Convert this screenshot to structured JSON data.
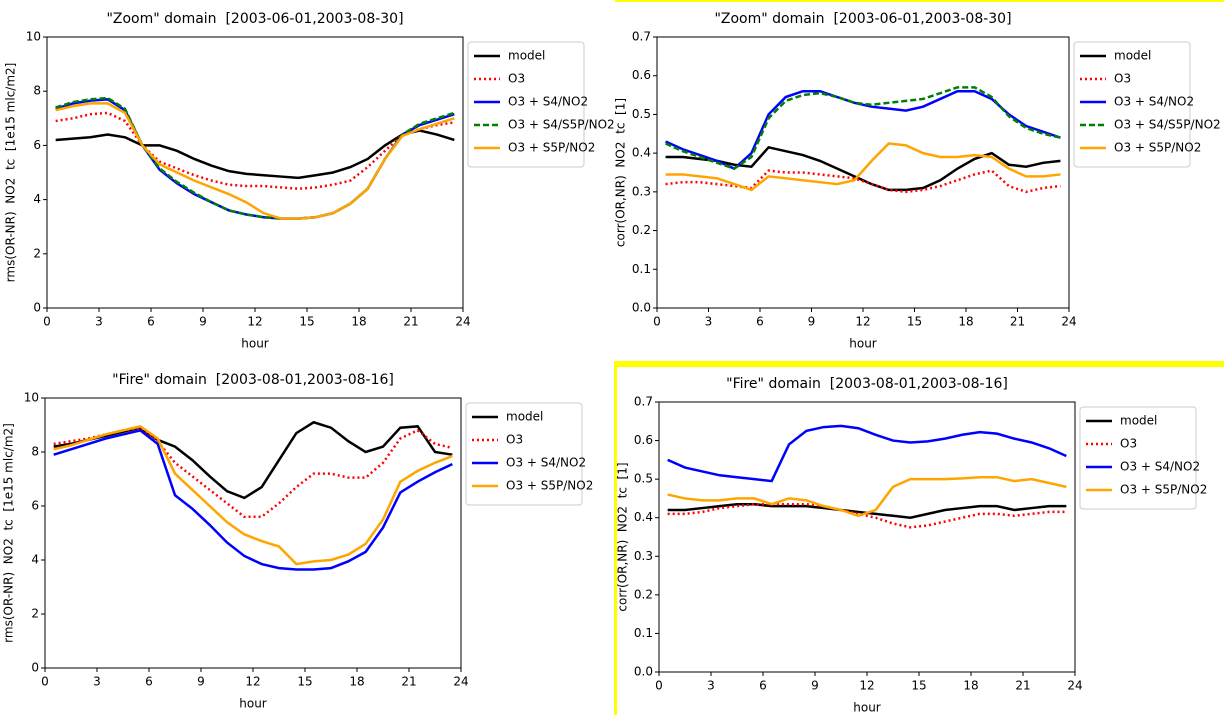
{
  "chart_data": [
    {
      "type": "line",
      "title": "\"Zoom\" domain  [2003-06-01,2003-08-30]",
      "xlabel": "hour",
      "ylabel": "rms(OR-NR)  NO2  tc  [1e15 mlc/m2]",
      "x": [
        0.5,
        1.5,
        2.5,
        3.5,
        4.5,
        5.5,
        6.5,
        7.5,
        8.5,
        9.5,
        10.5,
        11.5,
        12.5,
        13.5,
        14.5,
        15.5,
        16.5,
        17.5,
        18.5,
        19.5,
        20.5,
        21.5,
        22.5,
        23.5
      ],
      "xlim": [
        0,
        24
      ],
      "xticks": [
        0,
        3,
        6,
        9,
        12,
        15,
        18,
        21,
        24
      ],
      "ylim": [
        0,
        10
      ],
      "yticks": [
        0,
        2,
        4,
        6,
        8,
        10
      ],
      "legend": "outside right",
      "series": [
        {
          "name": "model",
          "color": "#000000",
          "style": "solid",
          "values": [
            6.2,
            6.25,
            6.3,
            6.4,
            6.3,
            6.0,
            6.0,
            5.8,
            5.5,
            5.25,
            5.05,
            4.95,
            4.9,
            4.85,
            4.8,
            4.9,
            5.0,
            5.2,
            5.5,
            6.0,
            6.4,
            6.55,
            6.4,
            6.2
          ]
        },
        {
          "name": "O3",
          "color": "#ff0000",
          "style": "dotted",
          "values": [
            6.9,
            7.0,
            7.15,
            7.2,
            6.9,
            6.0,
            5.4,
            5.15,
            4.9,
            4.7,
            4.55,
            4.5,
            4.5,
            4.45,
            4.4,
            4.45,
            4.55,
            4.7,
            5.2,
            5.8,
            6.4,
            6.6,
            6.75,
            6.85
          ]
        },
        {
          "name": "O3 + S4/NO2",
          "color": "#0000ff",
          "style": "solid",
          "values": [
            7.35,
            7.55,
            7.65,
            7.7,
            7.3,
            6.0,
            5.1,
            4.6,
            4.2,
            3.9,
            3.6,
            3.45,
            3.35,
            3.3,
            3.3,
            3.35,
            3.5,
            3.85,
            4.4,
            5.5,
            6.4,
            6.75,
            6.95,
            7.15
          ]
        },
        {
          "name": "O3 + S4/S5P/NO2",
          "color": "#008000",
          "style": "dashed",
          "values": [
            7.4,
            7.6,
            7.7,
            7.75,
            7.35,
            6.0,
            5.15,
            4.65,
            4.25,
            3.9,
            3.6,
            3.45,
            3.35,
            3.3,
            3.3,
            3.35,
            3.5,
            3.85,
            4.4,
            5.5,
            6.4,
            6.8,
            7.0,
            7.2
          ]
        },
        {
          "name": "O3 + S5P/NO2",
          "color": "#ffa500",
          "style": "solid",
          "values": [
            7.3,
            7.45,
            7.55,
            7.55,
            7.2,
            6.0,
            5.3,
            5.0,
            4.7,
            4.45,
            4.2,
            3.9,
            3.5,
            3.3,
            3.3,
            3.35,
            3.5,
            3.85,
            4.4,
            5.5,
            6.35,
            6.6,
            6.8,
            7.0
          ]
        }
      ]
    },
    {
      "type": "line",
      "title": "\"Zoom\" domain  [2003-06-01,2003-08-30]",
      "xlabel": "hour",
      "ylabel": "corr(OR,NR)  NO2  tc  [1]",
      "x": [
        0.5,
        1.5,
        2.5,
        3.5,
        4.5,
        5.5,
        6.5,
        7.5,
        8.5,
        9.5,
        10.5,
        11.5,
        12.5,
        13.5,
        14.5,
        15.5,
        16.5,
        17.5,
        18.5,
        19.5,
        20.5,
        21.5,
        22.5,
        23.5
      ],
      "xlim": [
        0,
        24
      ],
      "xticks": [
        0,
        3,
        6,
        9,
        12,
        15,
        18,
        21,
        24
      ],
      "ylim": [
        0,
        0.7
      ],
      "yticks": [
        {
          "value": 0,
          "label": "0.0"
        },
        0.1,
        0.2,
        0.3,
        0.4,
        0.5,
        0.6,
        0.7
      ],
      "legend": "outside right",
      "series": [
        {
          "name": "model",
          "color": "#000000",
          "style": "solid",
          "values": [
            0.39,
            0.39,
            0.385,
            0.38,
            0.37,
            0.365,
            0.415,
            0.405,
            0.395,
            0.38,
            0.36,
            0.34,
            0.32,
            0.305,
            0.305,
            0.31,
            0.33,
            0.36,
            0.385,
            0.4,
            0.37,
            0.365,
            0.375,
            0.38
          ]
        },
        {
          "name": "O3",
          "color": "#ff0000",
          "style": "dotted",
          "values": [
            0.32,
            0.325,
            0.325,
            0.32,
            0.315,
            0.31,
            0.355,
            0.35,
            0.35,
            0.345,
            0.34,
            0.335,
            0.32,
            0.305,
            0.3,
            0.305,
            0.315,
            0.33,
            0.345,
            0.355,
            0.315,
            0.3,
            0.31,
            0.315
          ]
        },
        {
          "name": "O3 + S4/NO2",
          "color": "#0000ff",
          "style": "solid",
          "values": [
            0.43,
            0.41,
            0.395,
            0.38,
            0.36,
            0.4,
            0.5,
            0.545,
            0.56,
            0.56,
            0.545,
            0.53,
            0.52,
            0.515,
            0.51,
            0.52,
            0.54,
            0.56,
            0.56,
            0.54,
            0.5,
            0.47,
            0.455,
            0.44
          ]
        },
        {
          "name": "O3 + S4/S5P/NO2",
          "color": "#008000",
          "style": "dashed",
          "values": [
            0.425,
            0.405,
            0.39,
            0.375,
            0.36,
            0.39,
            0.49,
            0.535,
            0.55,
            0.555,
            0.545,
            0.53,
            0.525,
            0.53,
            0.535,
            0.54,
            0.555,
            0.57,
            0.57,
            0.545,
            0.495,
            0.465,
            0.45,
            0.44
          ]
        },
        {
          "name": "O3 + S5P/NO2",
          "color": "#ffa500",
          "style": "solid",
          "values": [
            0.345,
            0.345,
            0.34,
            0.335,
            0.32,
            0.305,
            0.34,
            0.335,
            0.33,
            0.325,
            0.32,
            0.33,
            0.38,
            0.425,
            0.42,
            0.4,
            0.39,
            0.39,
            0.395,
            0.39,
            0.36,
            0.34,
            0.34,
            0.345
          ]
        }
      ]
    },
    {
      "type": "line",
      "title": "\"Fire\" domain  [2003-08-01,2003-08-16]",
      "xlabel": "hour",
      "ylabel": "rms(OR-NR)  NO2  tc  [1e15 mlc/m2]",
      "x": [
        0.5,
        1.5,
        2.5,
        3.5,
        4.5,
        5.5,
        6.5,
        7.5,
        8.5,
        9.5,
        10.5,
        11.5,
        12.5,
        13.5,
        14.5,
        15.5,
        16.5,
        17.5,
        18.5,
        19.5,
        20.5,
        21.5,
        22.5,
        23.5
      ],
      "xlim": [
        0,
        24
      ],
      "xticks": [
        0,
        3,
        6,
        9,
        12,
        15,
        18,
        21,
        24
      ],
      "ylim": [
        0,
        10
      ],
      "yticks": [
        0,
        2,
        4,
        6,
        8,
        10
      ],
      "legend": "outside right",
      "series": [
        {
          "name": "model",
          "color": "#000000",
          "style": "solid",
          "values": [
            8.2,
            8.3,
            8.45,
            8.6,
            8.75,
            8.9,
            8.45,
            8.2,
            7.7,
            7.1,
            6.55,
            6.3,
            6.7,
            7.7,
            8.7,
            9.1,
            8.9,
            8.4,
            8.0,
            8.2,
            8.9,
            8.95,
            8.0,
            7.9
          ]
        },
        {
          "name": "O3",
          "color": "#ff0000",
          "style": "dotted",
          "values": [
            8.3,
            8.4,
            8.5,
            8.65,
            8.8,
            8.9,
            8.4,
            7.6,
            7.1,
            6.6,
            6.1,
            5.6,
            5.6,
            6.1,
            6.7,
            7.2,
            7.2,
            7.05,
            7.05,
            7.6,
            8.5,
            8.8,
            8.3,
            8.15
          ]
        },
        {
          "name": "O3 + S4/NO2",
          "color": "#0000ff",
          "style": "solid",
          "values": [
            7.9,
            8.1,
            8.3,
            8.5,
            8.65,
            8.8,
            8.3,
            6.4,
            5.9,
            5.3,
            4.65,
            4.15,
            3.85,
            3.7,
            3.65,
            3.65,
            3.7,
            3.95,
            4.3,
            5.2,
            6.5,
            6.9,
            7.25,
            7.55
          ]
        },
        {
          "name": "O3 + S5P/NO2",
          "color": "#ffa500",
          "style": "solid",
          "values": [
            8.1,
            8.25,
            8.45,
            8.65,
            8.8,
            8.95,
            8.5,
            7.2,
            6.6,
            6.0,
            5.4,
            4.95,
            4.7,
            4.5,
            3.85,
            3.95,
            4.0,
            4.2,
            4.6,
            5.5,
            6.9,
            7.3,
            7.6,
            7.85
          ]
        }
      ]
    },
    {
      "type": "line",
      "title": "\"Fire\" domain  [2003-08-01,2003-08-16]",
      "xlabel": "hour",
      "ylabel": "corr(OR,NR)  NO2  tc  [1]",
      "x": [
        0.5,
        1.5,
        2.5,
        3.5,
        4.5,
        5.5,
        6.5,
        7.5,
        8.5,
        9.5,
        10.5,
        11.5,
        12.5,
        13.5,
        14.5,
        15.5,
        16.5,
        17.5,
        18.5,
        19.5,
        20.5,
        21.5,
        22.5,
        23.5
      ],
      "xlim": [
        0,
        24
      ],
      "xticks": [
        0,
        3,
        6,
        9,
        12,
        15,
        18,
        21,
        24
      ],
      "ylim": [
        0,
        0.7
      ],
      "yticks": [
        {
          "value": 0,
          "label": "0.0"
        },
        0.1,
        0.2,
        0.3,
        0.4,
        0.5,
        0.6,
        0.7
      ],
      "legend": "outside right",
      "series": [
        {
          "name": "model",
          "color": "#000000",
          "style": "solid",
          "values": [
            0.42,
            0.42,
            0.425,
            0.43,
            0.435,
            0.435,
            0.43,
            0.43,
            0.43,
            0.425,
            0.42,
            0.415,
            0.41,
            0.405,
            0.4,
            0.41,
            0.42,
            0.425,
            0.43,
            0.43,
            0.42,
            0.425,
            0.43,
            0.43
          ]
        },
        {
          "name": "O3",
          "color": "#ff0000",
          "style": "dotted",
          "values": [
            0.41,
            0.41,
            0.415,
            0.425,
            0.43,
            0.435,
            0.435,
            0.435,
            0.435,
            0.43,
            0.42,
            0.41,
            0.4,
            0.385,
            0.375,
            0.38,
            0.39,
            0.4,
            0.41,
            0.41,
            0.405,
            0.41,
            0.415,
            0.415
          ]
        },
        {
          "name": "O3 + S4/NO2",
          "color": "#0000ff",
          "style": "solid",
          "values": [
            0.55,
            0.53,
            0.52,
            0.51,
            0.505,
            0.5,
            0.495,
            0.59,
            0.625,
            0.635,
            0.638,
            0.632,
            0.615,
            0.6,
            0.595,
            0.598,
            0.605,
            0.615,
            0.622,
            0.618,
            0.605,
            0.595,
            0.58,
            0.56
          ]
        },
        {
          "name": "O3 + S5P/NO2",
          "color": "#ffa500",
          "style": "solid",
          "values": [
            0.46,
            0.45,
            0.445,
            0.445,
            0.45,
            0.45,
            0.435,
            0.45,
            0.445,
            0.43,
            0.42,
            0.405,
            0.42,
            0.48,
            0.5,
            0.5,
            0.5,
            0.502,
            0.505,
            0.505,
            0.495,
            0.5,
            0.49,
            0.48
          ]
        }
      ]
    }
  ]
}
